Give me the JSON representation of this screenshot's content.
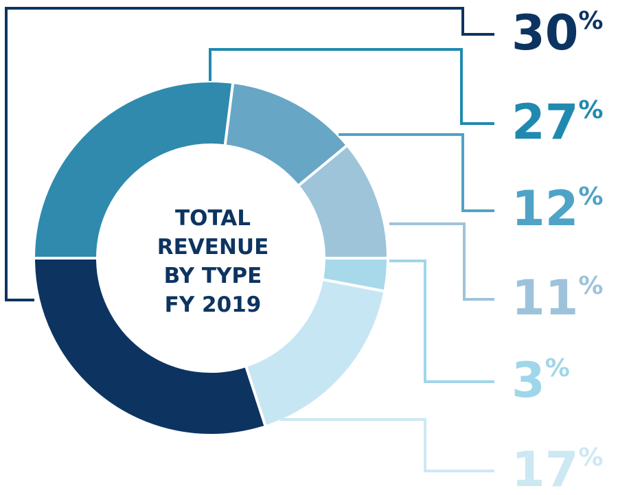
{
  "chart_data": {
    "type": "pie",
    "variant": "donut",
    "title": "TOTAL REVENUE BY TYPE FY 2019",
    "title_lines": [
      "TOTAL",
      "REVENUE",
      "BY TYPE",
      "FY 2019"
    ],
    "slices": [
      {
        "value": 30,
        "label": "30",
        "color": "#0d3461"
      },
      {
        "value": 27,
        "label": "27",
        "color": "#2f8aae"
      },
      {
        "value": 12,
        "label": "12",
        "color": "#68a6c6"
      },
      {
        "value": 11,
        "label": "11",
        "color": "#9dc4d9"
      },
      {
        "value": 3,
        "label": "3",
        "color": "#a7d9ea"
      },
      {
        "value": 17,
        "label": "17",
        "color": "#c7e6f3"
      }
    ],
    "percent_sign": "%",
    "label_colors": [
      "#0d3461",
      "#2089b0",
      "#4fa3c6",
      "#9dc3da",
      "#9fd6e9",
      "#cce8f3"
    ],
    "colors": {
      "text_dark": "#0d3461",
      "background": "#ffffff"
    }
  }
}
